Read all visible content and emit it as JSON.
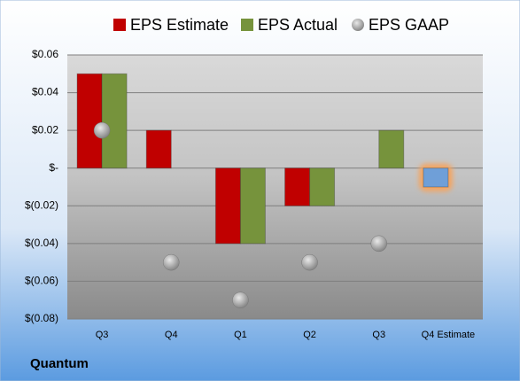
{
  "chart_data": {
    "type": "bar",
    "company": "Quantum",
    "categories": [
      "Q3",
      "Q4",
      "Q1",
      "Q2",
      "Q3",
      "Q4 Estimate"
    ],
    "series": [
      {
        "name": "EPS Estimate",
        "color": "#c00000",
        "colors": [
          "#c00000",
          "#c00000",
          "#c00000",
          "#c00000",
          "#c00000",
          "#6f9fd8"
        ],
        "values": [
          0.05,
          0.02,
          -0.04,
          -0.02,
          null,
          -0.01
        ]
      },
      {
        "name": "EPS Actual",
        "color": "#76933c",
        "values": [
          0.05,
          null,
          -0.04,
          -0.02,
          0.02,
          null
        ]
      },
      {
        "name": "EPS GAAP",
        "color": "#a6a6a6",
        "type": "scatter",
        "values": [
          0.02,
          -0.05,
          -0.07,
          -0.05,
          -0.04,
          null
        ]
      }
    ],
    "ylim": [
      -0.08,
      0.06
    ],
    "yticks": [
      {
        "value": -0.08,
        "label": "$(0.08)"
      },
      {
        "value": -0.06,
        "label": "$(0.06)"
      },
      {
        "value": -0.04,
        "label": "$(0.04)"
      },
      {
        "value": -0.02,
        "label": "$(0.02)"
      },
      {
        "value": 0,
        "label": "$-"
      },
      {
        "value": 0.02,
        "label": "$0.02"
      },
      {
        "value": 0.04,
        "label": "$0.04"
      },
      {
        "value": 0.06,
        "label": "$0.06"
      }
    ],
    "grid": true
  }
}
